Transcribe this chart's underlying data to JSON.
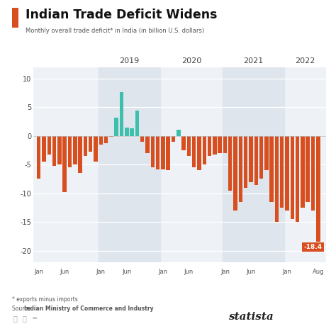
{
  "title": "Indian Trade Deficit Widens",
  "subtitle": "Monthly overall trade deficit* in India (in billion U.S. dollars)",
  "footnote": "* exports minus imports",
  "source_prefix": "Source: ",
  "source_bold": "Indian Ministry of Commerce and Industry",
  "bar_color_neg": "#D94E1F",
  "bar_color_pos": "#3DBFAD",
  "title_bar_color": "#D94E1F",
  "bg_color": "#FFFFFF",
  "plot_bg": "#EEF2F6",
  "shade_color": "#DEE5ED",
  "grid_color": "#FFFFFF",
  "ylim": [
    -22,
    12
  ],
  "yticks": [
    10,
    5,
    0,
    -5,
    -10,
    -15,
    -20
  ],
  "values": [
    -7.5,
    -4.5,
    -3.2,
    -5.2,
    -5.0,
    -9.8,
    -5.5,
    -5.0,
    -6.5,
    -3.5,
    -2.8,
    -4.5,
    -1.5,
    -1.2,
    -0.2,
    3.2,
    7.7,
    1.5,
    1.4,
    4.4,
    -1.0,
    -3.0,
    -5.5,
    -5.8,
    -5.8,
    -6.0,
    -1.0,
    1.1,
    -2.5,
    -3.5,
    -5.5,
    -6.0,
    -5.0,
    -3.5,
    -3.2,
    -3.0,
    -3.0,
    -9.5,
    -13.0,
    -11.5,
    -9.0,
    -8.0,
    -8.5,
    -7.5,
    -6.0,
    -11.5,
    -15.0,
    -12.5,
    -13.0,
    -14.5,
    -15.0,
    -12.5,
    -11.5,
    -13.0,
    -18.4
  ],
  "jan_indices": [
    0,
    12,
    24,
    36,
    48
  ],
  "jun_indices": [
    5,
    17,
    29,
    41
  ],
  "aug_index": 54,
  "shade_ranges": [
    [
      12,
      24
    ],
    [
      36,
      48
    ]
  ],
  "year_positions": [
    {
      "label": "2019",
      "x": 17.5
    },
    {
      "label": "2020",
      "x": 29.5
    },
    {
      "label": "2021",
      "x": 41.5
    },
    {
      "label": "2022",
      "x": 51.5
    }
  ],
  "annotation_index": 54,
  "annotation_text": "-18.4",
  "statista_text": "statista"
}
